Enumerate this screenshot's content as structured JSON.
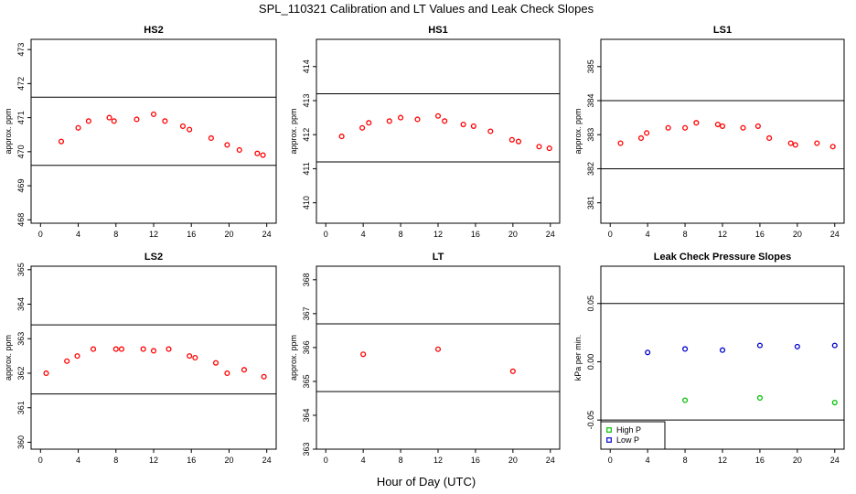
{
  "title": "SPL_110321  Calibration and LT Values and Leak Check Slopes",
  "xlabel": "Hour of Day (UTC)",
  "chart_data": [
    {
      "type": "scatter",
      "title": "HS2",
      "ylabel": "approx. ppm",
      "xlim": [
        -1,
        25
      ],
      "ylim": [
        467.9,
        473.3
      ],
      "xticks": [
        0,
        4,
        8,
        12,
        16,
        20,
        24
      ],
      "yticks": [
        468,
        469,
        470,
        471,
        472,
        473
      ],
      "hlines": [
        471.6,
        469.6
      ],
      "color": "#ff0000",
      "points": [
        [
          2.2,
          470.3
        ],
        [
          4.0,
          470.7
        ],
        [
          5.1,
          470.9
        ],
        [
          7.3,
          471.0
        ],
        [
          7.8,
          470.9
        ],
        [
          10.2,
          470.95
        ],
        [
          12.0,
          471.1
        ],
        [
          13.2,
          470.9
        ],
        [
          15.1,
          470.75
        ],
        [
          15.8,
          470.65
        ],
        [
          18.1,
          470.4
        ],
        [
          19.8,
          470.2
        ],
        [
          21.1,
          470.05
        ],
        [
          23.0,
          469.95
        ],
        [
          23.6,
          469.9
        ]
      ]
    },
    {
      "type": "scatter",
      "title": "HS1",
      "ylabel": "approx. ppm",
      "xlim": [
        -1,
        25
      ],
      "ylim": [
        409.4,
        414.8
      ],
      "xticks": [
        0,
        4,
        8,
        12,
        16,
        20,
        24
      ],
      "yticks": [
        410,
        411,
        412,
        413,
        414
      ],
      "hlines": [
        413.2,
        411.2
      ],
      "color": "#ff0000",
      "points": [
        [
          1.7,
          411.95
        ],
        [
          3.9,
          412.2
        ],
        [
          4.6,
          412.35
        ],
        [
          6.8,
          412.4
        ],
        [
          8.0,
          412.5
        ],
        [
          9.8,
          412.45
        ],
        [
          12.0,
          412.55
        ],
        [
          12.7,
          412.4
        ],
        [
          14.7,
          412.3
        ],
        [
          15.8,
          412.25
        ],
        [
          17.6,
          412.1
        ],
        [
          19.9,
          411.85
        ],
        [
          20.6,
          411.8
        ],
        [
          22.8,
          411.65
        ],
        [
          23.9,
          411.6
        ]
      ]
    },
    {
      "type": "scatter",
      "title": "LS1",
      "ylabel": "approx. ppm",
      "xlim": [
        -1,
        25
      ],
      "ylim": [
        380.4,
        385.8
      ],
      "xticks": [
        0,
        4,
        8,
        12,
        16,
        20,
        24
      ],
      "yticks": [
        381,
        382,
        383,
        384,
        385
      ],
      "hlines": [
        384.0,
        382.0
      ],
      "color": "#ff0000",
      "points": [
        [
          1.1,
          382.75
        ],
        [
          3.3,
          382.9
        ],
        [
          3.9,
          383.05
        ],
        [
          6.2,
          383.2
        ],
        [
          8.0,
          383.2
        ],
        [
          9.2,
          383.35
        ],
        [
          11.5,
          383.3
        ],
        [
          12.0,
          383.25
        ],
        [
          14.2,
          383.2
        ],
        [
          15.8,
          383.25
        ],
        [
          17.0,
          382.9
        ],
        [
          19.3,
          382.75
        ],
        [
          19.8,
          382.7
        ],
        [
          22.1,
          382.75
        ],
        [
          23.8,
          382.65
        ]
      ]
    },
    {
      "type": "scatter",
      "title": "LS2",
      "ylabel": "approx. ppm",
      "xlim": [
        -1,
        25
      ],
      "ylim": [
        359.8,
        365.1
      ],
      "xticks": [
        0,
        4,
        8,
        12,
        16,
        20,
        24
      ],
      "yticks": [
        360,
        361,
        362,
        363,
        364,
        365
      ],
      "hlines": [
        363.4,
        361.4
      ],
      "color": "#ff0000",
      "points": [
        [
          0.6,
          362.0
        ],
        [
          2.8,
          362.35
        ],
        [
          3.9,
          362.5
        ],
        [
          5.6,
          362.7
        ],
        [
          8.0,
          362.7
        ],
        [
          8.6,
          362.7
        ],
        [
          10.9,
          362.7
        ],
        [
          12.0,
          362.65
        ],
        [
          13.6,
          362.7
        ],
        [
          15.8,
          362.5
        ],
        [
          16.4,
          362.45
        ],
        [
          18.6,
          362.3
        ],
        [
          19.8,
          362.0
        ],
        [
          21.6,
          362.1
        ],
        [
          23.7,
          361.9
        ]
      ]
    },
    {
      "type": "scatter",
      "title": "LT",
      "ylabel": "approx. ppm",
      "xlim": [
        -1,
        25
      ],
      "ylim": [
        363.0,
        368.4
      ],
      "xticks": [
        0,
        4,
        8,
        12,
        16,
        20,
        24
      ],
      "yticks": [
        363,
        364,
        365,
        366,
        367,
        368
      ],
      "hlines": [
        366.7,
        364.7
      ],
      "color": "#ff0000",
      "points": [
        [
          4.0,
          365.8
        ],
        [
          12.0,
          365.95
        ],
        [
          20.0,
          365.3
        ]
      ]
    },
    {
      "type": "scatter",
      "title": "Leak Check Pressure Slopes",
      "ylabel": "kPa per min.",
      "xlim": [
        -1,
        25
      ],
      "ylim": [
        -0.075,
        0.082
      ],
      "xticks": [
        0,
        4,
        8,
        12,
        16,
        20,
        24
      ],
      "yticks": [
        -0.05,
        0.0,
        0.05
      ],
      "ytick_labels": [
        "-0.05",
        "0.00",
        "0.05"
      ],
      "hlines": [
        0.05,
        -0.05
      ],
      "legend": "bottom-left",
      "series": [
        {
          "name": "High P",
          "color": "#00c000",
          "points": [
            [
              8,
              -0.033
            ],
            [
              16,
              -0.031
            ],
            [
              24,
              -0.035
            ]
          ]
        },
        {
          "name": "Low P",
          "color": "#0000cc",
          "points": [
            [
              4,
              0.008
            ],
            [
              8,
              0.011
            ],
            [
              12,
              0.01
            ],
            [
              16,
              0.014
            ],
            [
              20,
              0.013
            ],
            [
              24,
              0.014
            ]
          ]
        }
      ]
    }
  ]
}
